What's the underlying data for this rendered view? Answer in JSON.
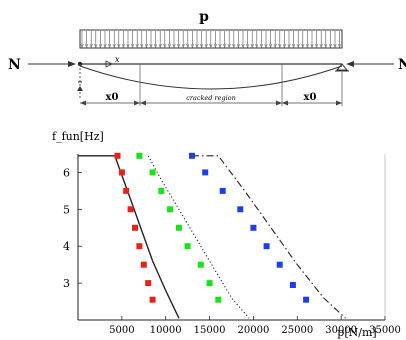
{
  "diagram": {
    "load_label": "p",
    "axial_force_label": "N",
    "x_marker": "x",
    "left_segment_label": "x0",
    "middle_segment_label": "cracked region",
    "right_segment_label": "x0"
  },
  "chart_data": {
    "type": "scatter",
    "ylabel": "f_fun[Hz]",
    "xlabel": "p[N/m]",
    "xlim": [
      0,
      35000
    ],
    "ylim": [
      2,
      6.5
    ],
    "x_ticks": [
      5000,
      10000,
      15000,
      20000,
      25000,
      30000,
      35000
    ],
    "y_ticks": [
      3,
      4,
      5,
      6
    ],
    "grid": false,
    "colors": {
      "red": "#e8221b",
      "green": "#18e318",
      "blue": "#1f3fe6",
      "line": "#222222"
    },
    "series": [
      {
        "marker_color": "red",
        "points": [
          [
            4500,
            6.45
          ],
          [
            5000,
            6.0
          ],
          [
            5500,
            5.5
          ],
          [
            6000,
            5.0
          ],
          [
            6500,
            4.5
          ],
          [
            7000,
            4.0
          ],
          [
            7500,
            3.5
          ],
          [
            8000,
            3.0
          ],
          [
            8500,
            2.55
          ]
        ],
        "line_style": "solid",
        "line": [
          [
            0,
            6.45
          ],
          [
            4200,
            6.45
          ],
          [
            5500,
            5.6
          ],
          [
            7000,
            4.6
          ],
          [
            8500,
            3.6
          ],
          [
            10000,
            2.8
          ],
          [
            11500,
            2.05
          ]
        ]
      },
      {
        "marker_color": "green",
        "points": [
          [
            7000,
            6.45
          ],
          [
            8500,
            6.0
          ],
          [
            9500,
            5.5
          ],
          [
            10500,
            5.0
          ],
          [
            11500,
            4.5
          ],
          [
            12500,
            4.0
          ],
          [
            14000,
            3.5
          ],
          [
            15000,
            3.0
          ],
          [
            16000,
            2.55
          ]
        ],
        "line_style": "dotted",
        "line": [
          [
            8000,
            6.45
          ],
          [
            9500,
            5.8
          ],
          [
            11500,
            5.0
          ],
          [
            13500,
            4.2
          ],
          [
            15500,
            3.4
          ],
          [
            17500,
            2.6
          ],
          [
            19500,
            2.05
          ]
        ]
      },
      {
        "marker_color": "blue",
        "points": [
          [
            13000,
            6.45
          ],
          [
            14500,
            6.0
          ],
          [
            16500,
            5.5
          ],
          [
            18500,
            5.0
          ],
          [
            20000,
            4.5
          ],
          [
            21500,
            4.0
          ],
          [
            23000,
            3.5
          ],
          [
            24500,
            2.95
          ],
          [
            26000,
            2.55
          ]
        ],
        "line_style": "dashdot",
        "line": [
          [
            13000,
            6.45
          ],
          [
            16000,
            6.45
          ],
          [
            19000,
            5.5
          ],
          [
            22000,
            4.5
          ],
          [
            25000,
            3.5
          ],
          [
            28000,
            2.6
          ],
          [
            30500,
            2.05
          ]
        ]
      }
    ]
  }
}
